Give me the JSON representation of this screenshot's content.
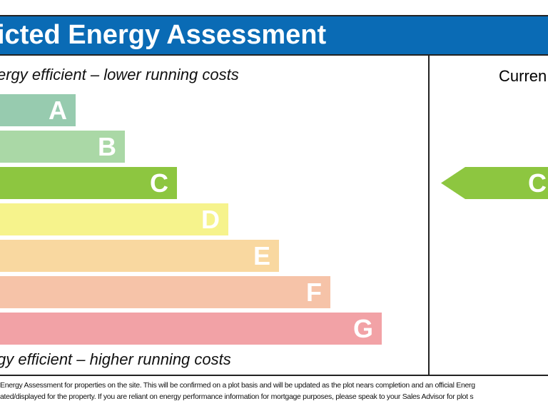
{
  "header": {
    "title": "icted Energy Assessment"
  },
  "scale": {
    "top_label": "ergy efficient – lower running costs",
    "bottom_label": "gy efficient – higher running costs",
    "bands": [
      {
        "letter": "A",
        "color": "#97cbaf"
      },
      {
        "letter": "B",
        "color": "#aad8a6"
      },
      {
        "letter": "C",
        "color": "#8dc640"
      },
      {
        "letter": "D",
        "color": "#f6f38c"
      },
      {
        "letter": "E",
        "color": "#f9d8a0"
      },
      {
        "letter": "F",
        "color": "#f6c3a8"
      },
      {
        "letter": "G",
        "color": "#f2a2a6"
      }
    ]
  },
  "current": {
    "label": "Curren",
    "rating": "C",
    "color": "#8dc640"
  },
  "footer": {
    "line1": "Energy Assessment for properties on the site. This will be confirmed on a plot basis and will be updated as the plot nears completion and an official Energ",
    "line2": "ated/displayed for the property. If you are reliant on energy performance information for mortgage purposes, please speak to your Sales Advisor for plot s"
  }
}
